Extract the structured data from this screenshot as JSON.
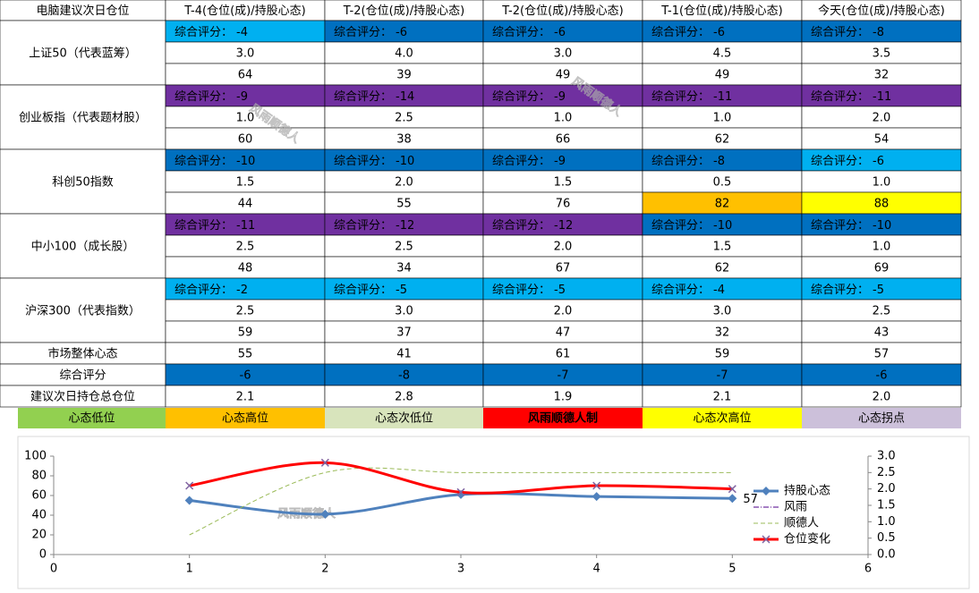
{
  "table": {
    "header": [
      "电脑建议次日仓位",
      "T-4(仓位(成)/持股心态)",
      "T-2(仓位(成)/持股心态)",
      "T-2(仓位(成)/持股心态)",
      "T-1(仓位(成)/持股心态)",
      "今天(仓位(成)/持股心态)"
    ],
    "score_label": "综合评分：",
    "groups": [
      {
        "name": "上证50（代表蓝筹）",
        "scores": [
          -4,
          -6,
          -6,
          -6,
          -8
        ],
        "score_colors": [
          "#00b0f0",
          "#0070c0",
          "#0070c0",
          "#0070c0",
          "#0070c0"
        ],
        "positions": [
          "3.0",
          "4.0",
          "3.0",
          "4.5",
          "3.5"
        ],
        "moods": [
          64,
          39,
          49,
          49,
          32
        ],
        "mood_colors": [
          "#ffffff",
          "#ffffff",
          "#ffffff",
          "#ffffff",
          "#ffffff"
        ]
      },
      {
        "name": "创业板指（代表题材股）",
        "scores": [
          -9,
          -14,
          -9,
          -11,
          -11
        ],
        "score_colors": [
          "#7030a0",
          "#7030a0",
          "#7030a0",
          "#7030a0",
          "#7030a0"
        ],
        "positions": [
          "1.0",
          "2.5",
          "1.0",
          "1.0",
          "2.0"
        ],
        "moods": [
          60,
          38,
          66,
          62,
          54
        ],
        "mood_colors": [
          "#ffffff",
          "#ffffff",
          "#ffffff",
          "#ffffff",
          "#ffffff"
        ]
      },
      {
        "name": "科创50指数",
        "scores": [
          -10,
          -10,
          -9,
          -8,
          -6
        ],
        "score_colors": [
          "#0070c0",
          "#0070c0",
          "#0070c0",
          "#0070c0",
          "#00b0f0"
        ],
        "positions": [
          "1.5",
          "2.0",
          "1.5",
          "0.5",
          "1.0"
        ],
        "moods": [
          44,
          55,
          76,
          82,
          88
        ],
        "mood_colors": [
          "#ffffff",
          "#ffffff",
          "#ffffff",
          "#ffc000",
          "#ffff00"
        ]
      },
      {
        "name": "中小100（成长股）",
        "scores": [
          -11,
          -12,
          -12,
          -10,
          -10
        ],
        "score_colors": [
          "#7030a0",
          "#7030a0",
          "#7030a0",
          "#0070c0",
          "#0070c0"
        ],
        "positions": [
          "2.5",
          "2.5",
          "2.0",
          "1.5",
          "1.0"
        ],
        "moods": [
          48,
          34,
          67,
          62,
          69
        ],
        "mood_colors": [
          "#ffffff",
          "#ffffff",
          "#ffffff",
          "#ffffff",
          "#ffffff"
        ]
      },
      {
        "name": "沪深300（代表指数）",
        "scores": [
          -2,
          -5,
          -5,
          -4,
          -5
        ],
        "score_colors": [
          "#00b0f0",
          "#00b0f0",
          "#00b0f0",
          "#00b0f0",
          "#00b0f0"
        ],
        "positions": [
          "2.5",
          "3.0",
          "2.0",
          "3.0",
          "2.5"
        ],
        "moods": [
          59,
          37,
          47,
          32,
          43
        ],
        "mood_colors": [
          "#ffffff",
          "#ffffff",
          "#ffffff",
          "#ffffff",
          "#ffffff"
        ]
      }
    ],
    "summary": [
      {
        "name": "市场整体心态",
        "values": [
          55,
          41,
          61,
          59,
          57
        ],
        "color": "#ffffff"
      },
      {
        "name": "综合评分",
        "values": [
          -6,
          -8,
          -7,
          -7,
          -6
        ],
        "color": "#0070c0"
      },
      {
        "name": "建议次日持仓总仓位",
        "values": [
          "2.1",
          "2.8",
          "1.9",
          "2.1",
          "2.0"
        ],
        "color": "#ffffff"
      }
    ],
    "legend": [
      {
        "label": "心态低位",
        "color": "#92d050"
      },
      {
        "label": "心态高位",
        "color": "#ffc000"
      },
      {
        "label": "心态次低位",
        "color": "#d8e4bc"
      },
      {
        "label": "风雨顺德人制",
        "color": "#ff0000"
      },
      {
        "label": "心态次高位",
        "color": "#ffff00"
      },
      {
        "label": "心态拐点",
        "color": "#ccc0da"
      }
    ]
  },
  "watermark": "风雨顺德人",
  "chart_data": {
    "type": "line",
    "x": [
      1,
      2,
      3,
      4,
      5
    ],
    "xlim": [
      0,
      6
    ],
    "xticks": [
      0,
      1,
      2,
      3,
      4,
      5,
      6
    ],
    "ylim": [
      0,
      100
    ],
    "yticks": [
      0,
      20,
      40,
      60,
      80,
      100
    ],
    "y2lim": [
      0,
      3
    ],
    "y2ticks": [
      {
        "value": 0,
        "label": "0.0"
      },
      {
        "value": 0.5,
        "label": "0.5"
      },
      {
        "value": 1,
        "label": "1.0"
      },
      {
        "value": 1.5,
        "label": "1.5"
      },
      {
        "value": 2,
        "label": "2.0"
      },
      {
        "value": 2.5,
        "label": "2.5"
      },
      {
        "value": 3,
        "label": "3.0"
      }
    ],
    "series": [
      {
        "name": "持股心态",
        "color": "#4f81bd",
        "values": [
          55,
          41,
          61,
          59,
          57
        ]
      },
      {
        "name": "风雨",
        "color": "#7030a0",
        "axis": "y2",
        "values": [
          null,
          null,
          null,
          null,
          null
        ]
      },
      {
        "name": "顺德人",
        "color": "#9bbb59",
        "axis": "y2",
        "values": [
          0.6,
          2.5,
          2.5,
          2.5,
          2.5
        ]
      },
      {
        "name": "仓位变化",
        "color": "#ff0000",
        "axis": "y2",
        "values": [
          2.1,
          2.8,
          1.9,
          2.1,
          2.0
        ]
      }
    ]
  }
}
